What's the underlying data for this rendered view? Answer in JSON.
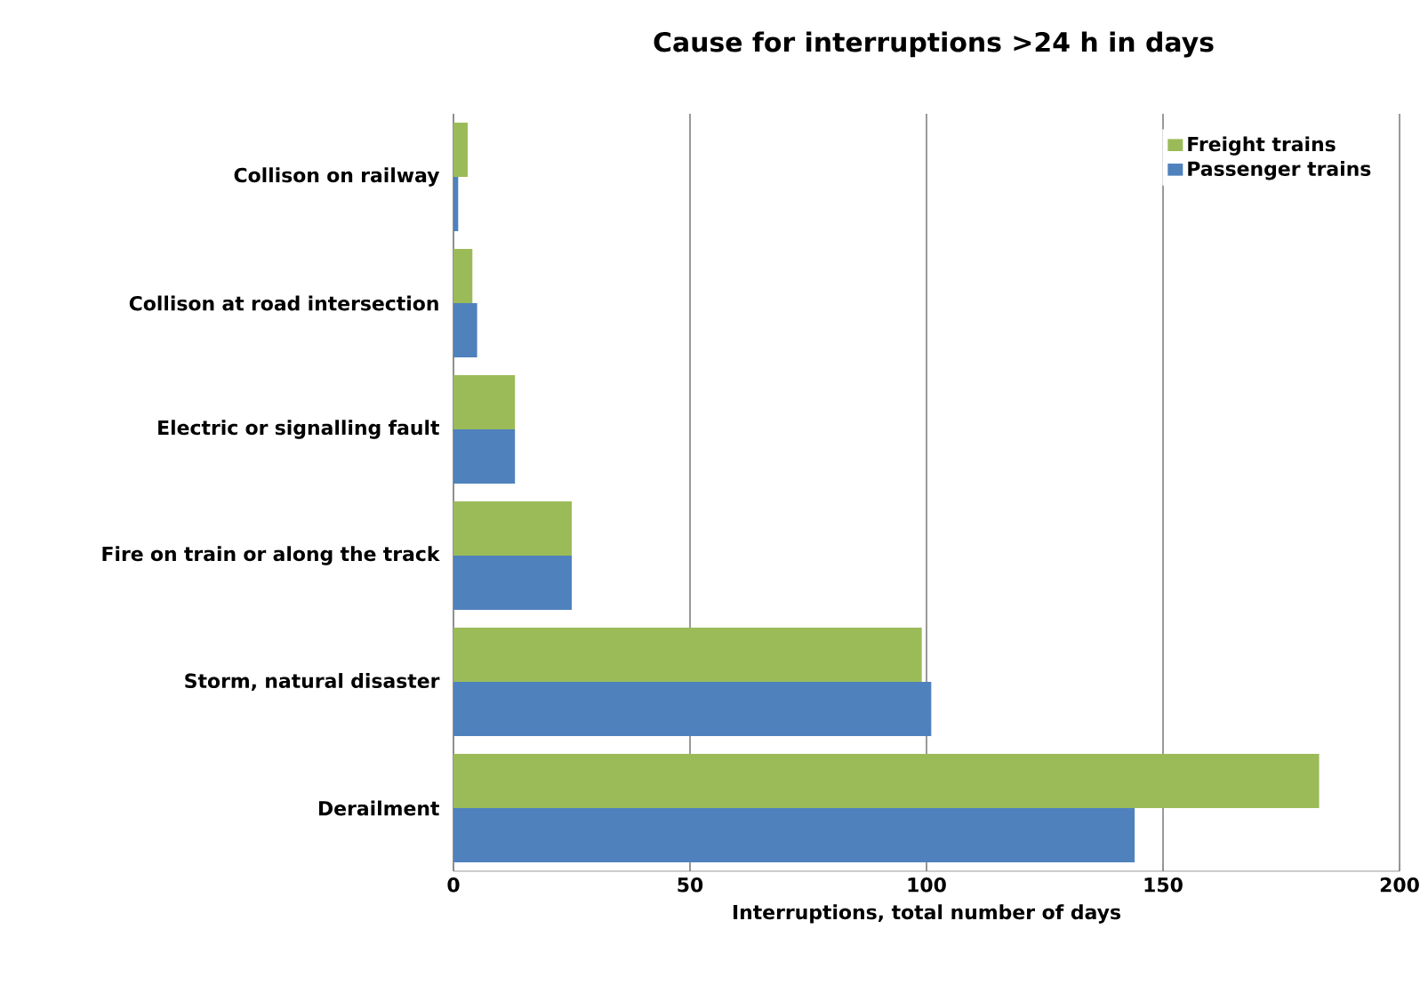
{
  "chart_data": {
    "type": "bar",
    "orientation": "horizontal",
    "title": "Cause for interruptions >24 h in days",
    "xlabel": "Interruptions, total number of days",
    "categories": [
      "Collison on railway",
      "Collison at road intersection",
      "Electric or signalling fault",
      "Fire on train or along the track",
      "Storm, natural disaster",
      "Derailment"
    ],
    "series": [
      {
        "name": "Freight trains",
        "color": "#9bbb59",
        "values": [
          3,
          4,
          13,
          25,
          99,
          183
        ]
      },
      {
        "name": "Passenger trains",
        "color": "#4f81bd",
        "values": [
          1,
          5,
          13,
          25,
          101,
          144
        ]
      }
    ],
    "xlim": [
      0,
      200
    ],
    "xticks": [
      0,
      50,
      100,
      150,
      200
    ],
    "grid": "x",
    "legend": "top right"
  }
}
